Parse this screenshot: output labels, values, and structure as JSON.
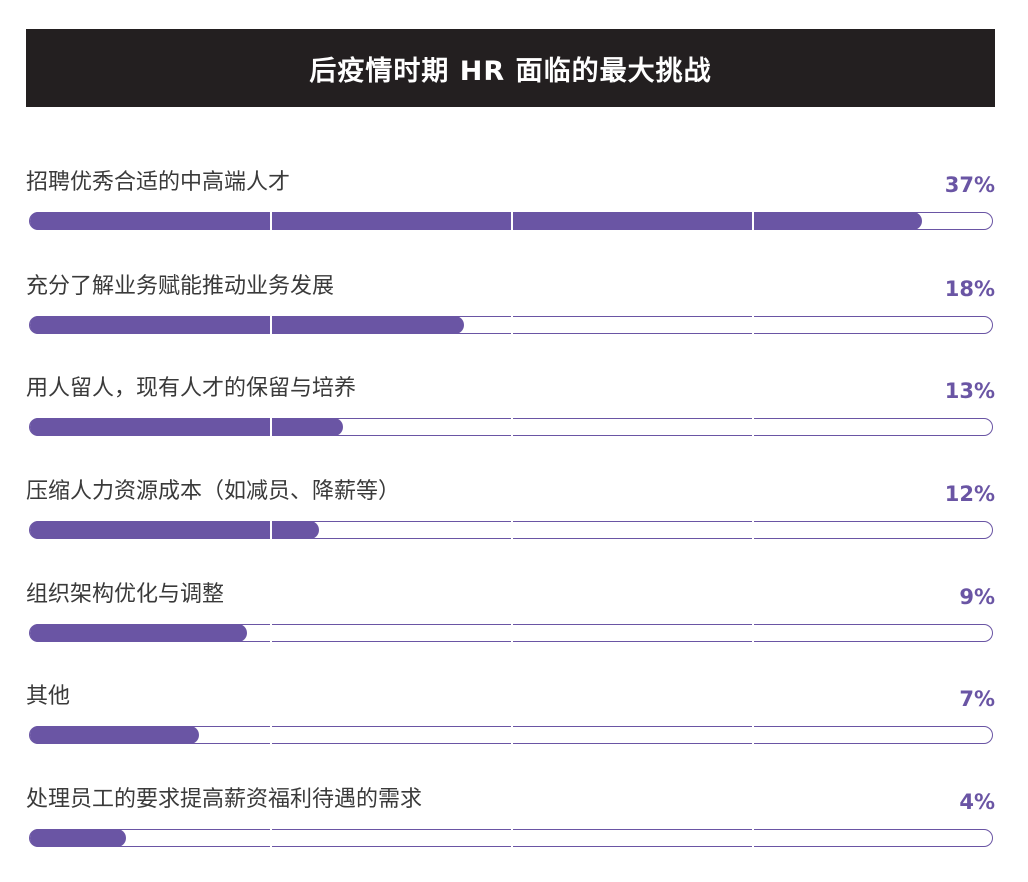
{
  "title": "后疫情时期 HR 面临的最大挑战",
  "colors": {
    "accent": "#6a55a4",
    "title_bg": "#231f20",
    "text": "#3a3a3a"
  },
  "chart_data": {
    "type": "bar",
    "orientation": "horizontal",
    "title": "后疫情时期 HR 面临的最大挑战",
    "xlim": [
      0,
      40
    ],
    "grid": false,
    "categories": [
      "招聘优秀合适的中高端人才",
      "充分了解业务赋能推动业务发展",
      "用人留人，现有人才的保留与培养",
      "压缩人力资源成本（如减员、降薪等）",
      "组织架构优化与调整",
      "其他",
      "处理员工的要求提高薪资福利待遇的需求"
    ],
    "values": [
      37,
      18,
      13,
      12,
      9,
      7,
      4
    ],
    "value_labels": [
      "37%",
      "18%",
      "13%",
      "12%",
      "9%",
      "7%",
      "4%"
    ]
  }
}
